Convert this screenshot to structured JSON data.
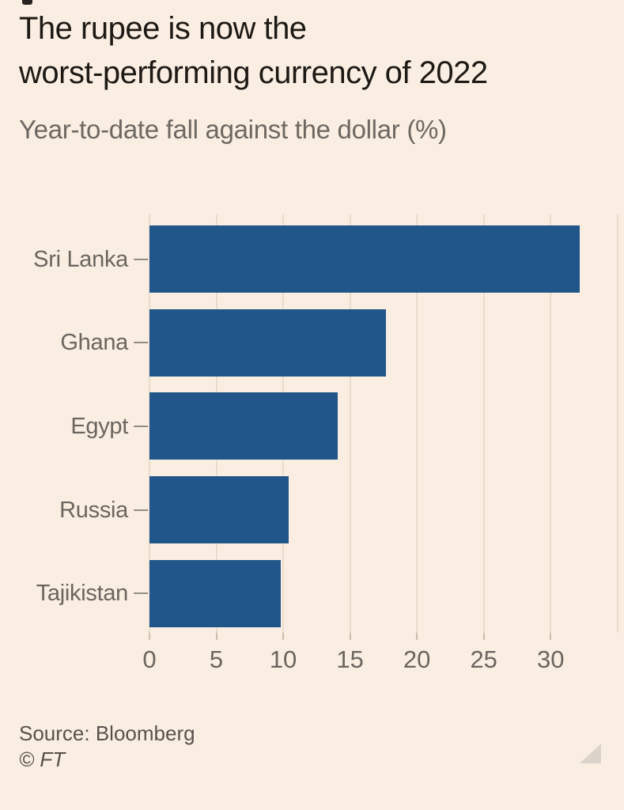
{
  "page": {
    "background": "#FAEEE2"
  },
  "header": {
    "title_lines": [
      "The rupee is now the",
      "worst-performing currency of 2022"
    ],
    "subtitle": "Year-to-date fall against the dollar (%)"
  },
  "chart_data": {
    "type": "bar",
    "orientation": "horizontal",
    "title": "The rupee is now the worst-performing currency of 2022",
    "subtitle": "Year-to-date fall against the dollar (%)",
    "categories": [
      "Sri Lanka",
      "Ghana",
      "Egypt",
      "Russia",
      "Tajikistan"
    ],
    "values": [
      32.2,
      17.7,
      14.1,
      10.4,
      9.8
    ],
    "xlabel": "",
    "ylabel": "",
    "xticks": [
      0,
      5,
      10,
      15,
      20,
      25,
      30
    ],
    "xlim": [
      0,
      35.25
    ],
    "gridline_step": 5,
    "grid": true,
    "legend": false,
    "bar_color": "#21568A"
  },
  "footer": {
    "source": "Source: Bloomberg",
    "copyright": "© FT"
  },
  "colors": {
    "background": "#FAEEE2",
    "bar": "#21568A",
    "title_text": "#1D1915",
    "subtitle_text": "#6E6862",
    "axis_text": "#6B655F",
    "gridline": "#EADCCD",
    "tick_mark": "#CBBDAF",
    "category_dash": "#938C85",
    "source_text": "#58524C",
    "triangle": "#DBD3C9"
  }
}
